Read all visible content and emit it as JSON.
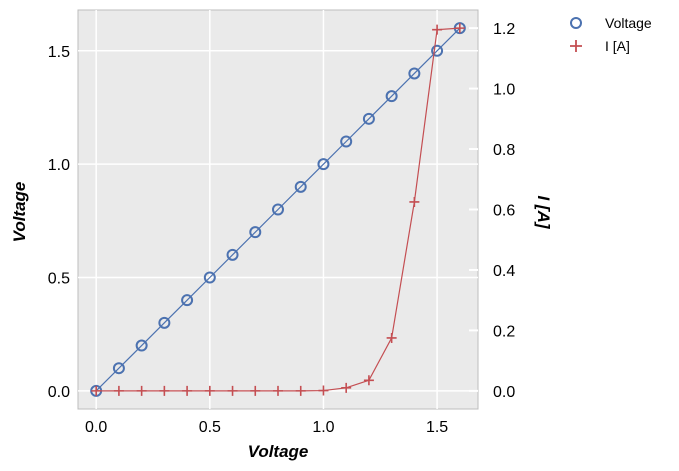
{
  "chart_data": {
    "type": "line",
    "x": [
      0.0,
      0.1,
      0.2,
      0.3,
      0.4,
      0.5,
      0.6,
      0.7,
      0.8,
      0.9,
      1.0,
      1.1,
      1.2,
      1.3,
      1.4,
      1.5,
      1.6
    ],
    "series": [
      {
        "name": "Voltage",
        "axis": "left",
        "marker": "circle",
        "color": "#4c72b0",
        "values": [
          0.0,
          0.1,
          0.2,
          0.3,
          0.4,
          0.5,
          0.6,
          0.7,
          0.8,
          0.9,
          1.0,
          1.1,
          1.2,
          1.3,
          1.4,
          1.5,
          1.6
        ]
      },
      {
        "name": "I [A]",
        "axis": "right",
        "marker": "plus",
        "color": "#c44e52",
        "values": [
          0.0,
          0.0,
          0.0,
          0.0,
          0.0,
          0.0,
          0.0,
          0.0,
          0.0,
          0.0,
          0.001,
          0.01,
          0.035,
          0.175,
          0.625,
          1.195,
          1.2
        ]
      }
    ],
    "xlabel": "Voltage",
    "ylabel": "Voltage",
    "y2label": "I [A]",
    "xlim": [
      -0.08,
      1.68
    ],
    "ylim": [
      -0.08,
      1.68
    ],
    "y2lim": [
      -0.06,
      1.26
    ],
    "xticks": [
      "0.0",
      "0.5",
      "1.0",
      "1.5"
    ],
    "yticks": [
      "0.0",
      "0.5",
      "1.0",
      "1.5"
    ],
    "y2ticks": [
      "0.0",
      "0.2",
      "0.4",
      "0.6",
      "0.8",
      "1.0",
      "1.2"
    ],
    "grid": true,
    "legend_position": "outside-top-right",
    "plot_background": "#eaeaea",
    "grid_color": "#ffffff"
  }
}
